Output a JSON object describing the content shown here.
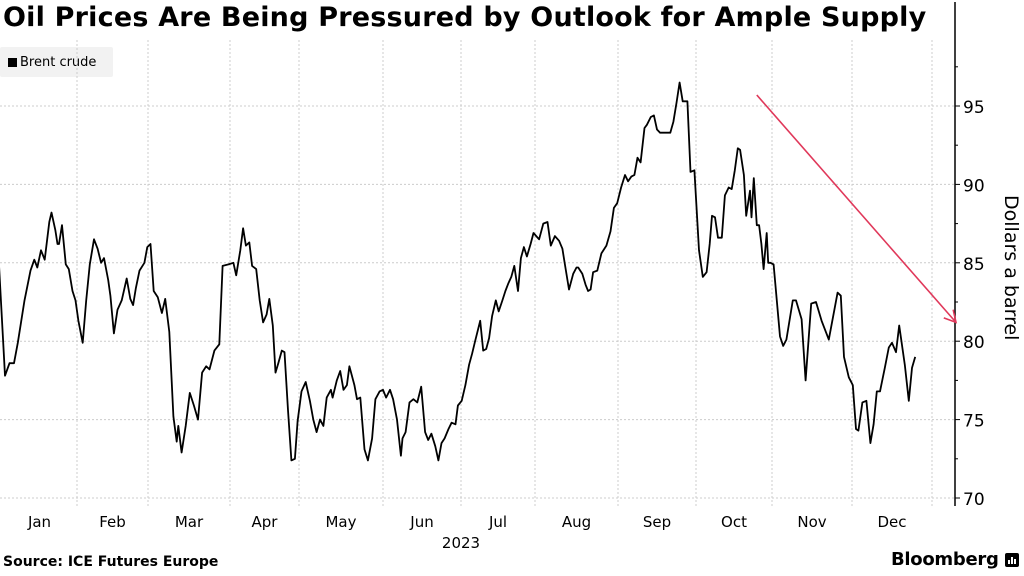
{
  "header": {
    "title": "Oil Prices Are Being Pressured by Outlook for Ample Supply"
  },
  "footer": {
    "source": "Source: ICE Futures Europe",
    "brand": "Bloomberg",
    "brand_icon": "bloomberg-chart-icon"
  },
  "colors": {
    "line": "#000000",
    "arrow": "#e0385a",
    "grid": "#cccccc",
    "legend_bg": "#f2f2f2"
  },
  "chart_data": {
    "type": "line",
    "title": "Oil Prices Are Being Pressured by Outlook for Ample Supply",
    "xlabel": "2023",
    "ylabel": "Dollars a barrel",
    "ylim": [
      69.5,
      98
    ],
    "yticks": [
      70,
      75,
      80,
      85,
      90,
      95
    ],
    "xticks": [
      "Jan",
      "Feb",
      "Mar",
      "Apr",
      "May",
      "Jun",
      "Jul",
      "Aug",
      "Sep",
      "Oct",
      "Nov",
      "Dec"
    ],
    "x_year_label": "2023",
    "grid": true,
    "legend": {
      "position": "top-left",
      "entries": [
        "Brent crude"
      ]
    },
    "annotation": {
      "type": "arrow",
      "description": "downward trend arrow",
      "from": {
        "month": 9.8,
        "value": 95.7
      },
      "to": {
        "month": 12.3,
        "value": 81.2
      }
    },
    "x_domain": [
      0.0,
      12.0
    ],
    "series": [
      {
        "name": "Brent crude",
        "points": [
          [
            -0.05,
            85.8
          ],
          [
            0.04,
            77.8
          ],
          [
            0.1,
            78.6
          ],
          [
            0.16,
            78.6
          ],
          [
            0.21,
            79.9
          ],
          [
            0.3,
            82.6
          ],
          [
            0.38,
            84.5
          ],
          [
            0.43,
            85.2
          ],
          [
            0.47,
            84.7
          ],
          [
            0.52,
            85.8
          ],
          [
            0.57,
            85.2
          ],
          [
            0.63,
            87.6
          ],
          [
            0.66,
            88.2
          ],
          [
            0.71,
            87.1
          ],
          [
            0.74,
            86.2
          ],
          [
            0.76,
            86.2
          ],
          [
            0.8,
            87.4
          ],
          [
            0.85,
            84.9
          ],
          [
            0.89,
            84.6
          ],
          [
            0.94,
            83.2
          ],
          [
            0.98,
            82.6
          ],
          [
            1.02,
            81.3
          ],
          [
            1.08,
            79.9
          ],
          [
            1.13,
            82.6
          ],
          [
            1.18,
            84.9
          ],
          [
            1.24,
            86.5
          ],
          [
            1.29,
            85.9
          ],
          [
            1.34,
            85.0
          ],
          [
            1.38,
            85.3
          ],
          [
            1.44,
            83.9
          ],
          [
            1.47,
            82.9
          ],
          [
            1.52,
            80.5
          ],
          [
            1.57,
            82.0
          ],
          [
            1.63,
            82.6
          ],
          [
            1.7,
            84.0
          ],
          [
            1.75,
            82.7
          ],
          [
            1.79,
            82.3
          ],
          [
            1.83,
            83.4
          ],
          [
            1.88,
            84.5
          ],
          [
            1.95,
            85.0
          ],
          [
            1.99,
            86.0
          ],
          [
            2.03,
            86.2
          ],
          [
            2.07,
            83.2
          ],
          [
            2.12,
            82.8
          ],
          [
            2.17,
            81.8
          ],
          [
            2.21,
            82.7
          ],
          [
            2.26,
            80.6
          ],
          [
            2.31,
            75.2
          ],
          [
            2.35,
            73.6
          ],
          [
            2.37,
            74.6
          ],
          [
            2.41,
            72.9
          ],
          [
            2.46,
            74.6
          ],
          [
            2.51,
            76.7
          ],
          [
            2.56,
            75.9
          ],
          [
            2.61,
            75.0
          ],
          [
            2.66,
            78.0
          ],
          [
            2.71,
            78.4
          ],
          [
            2.75,
            78.2
          ],
          [
            2.81,
            79.4
          ],
          [
            2.87,
            79.8
          ],
          [
            2.91,
            84.8
          ],
          [
            2.98,
            84.9
          ],
          [
            3.05,
            85.0
          ],
          [
            3.09,
            84.2
          ],
          [
            3.15,
            85.8
          ],
          [
            3.19,
            87.2
          ],
          [
            3.23,
            86.1
          ],
          [
            3.28,
            86.3
          ],
          [
            3.32,
            84.8
          ],
          [
            3.38,
            84.6
          ],
          [
            3.43,
            82.6
          ],
          [
            3.48,
            81.2
          ],
          [
            3.53,
            81.7
          ],
          [
            3.57,
            82.7
          ],
          [
            3.62,
            81.0
          ],
          [
            3.66,
            78.0
          ],
          [
            3.7,
            78.6
          ],
          [
            3.75,
            79.4
          ],
          [
            3.79,
            79.3
          ],
          [
            3.84,
            75.6
          ],
          [
            3.89,
            72.4
          ],
          [
            3.94,
            72.5
          ],
          [
            3.98,
            74.9
          ],
          [
            4.03,
            76.8
          ],
          [
            4.08,
            77.4
          ],
          [
            4.13,
            76.2
          ],
          [
            4.17,
            75.0
          ],
          [
            4.21,
            74.2
          ],
          [
            4.25,
            75.0
          ],
          [
            4.29,
            74.6
          ],
          [
            4.33,
            76.4
          ],
          [
            4.38,
            76.9
          ],
          [
            4.4,
            76.4
          ],
          [
            4.45,
            77.5
          ],
          [
            4.49,
            78.1
          ],
          [
            4.53,
            76.9
          ],
          [
            4.57,
            77.2
          ],
          [
            4.6,
            78.4
          ],
          [
            4.66,
            77.2
          ],
          [
            4.69,
            76.3
          ],
          [
            4.73,
            76.4
          ],
          [
            4.78,
            73.1
          ],
          [
            4.82,
            72.4
          ],
          [
            4.87,
            73.8
          ],
          [
            4.91,
            76.3
          ],
          [
            4.96,
            76.8
          ],
          [
            5.0,
            76.9
          ],
          [
            5.04,
            76.4
          ],
          [
            5.09,
            76.9
          ],
          [
            5.13,
            76.3
          ],
          [
            5.18,
            75.0
          ],
          [
            5.23,
            72.7
          ],
          [
            5.25,
            73.8
          ],
          [
            5.29,
            74.2
          ],
          [
            5.34,
            76.1
          ],
          [
            5.39,
            76.3
          ],
          [
            5.44,
            76.1
          ],
          [
            5.49,
            77.1
          ],
          [
            5.54,
            74.2
          ],
          [
            5.58,
            73.7
          ],
          [
            5.62,
            74.1
          ],
          [
            5.67,
            73.3
          ],
          [
            5.71,
            72.4
          ],
          [
            5.75,
            73.5
          ],
          [
            5.79,
            73.8
          ],
          [
            5.84,
            74.4
          ],
          [
            5.88,
            74.8
          ],
          [
            5.93,
            74.7
          ],
          [
            5.96,
            75.9
          ],
          [
            6.01,
            76.2
          ],
          [
            6.06,
            77.2
          ],
          [
            6.11,
            78.5
          ],
          [
            6.15,
            79.2
          ],
          [
            6.19,
            80.0
          ],
          [
            6.26,
            81.3
          ],
          [
            6.3,
            79.4
          ],
          [
            6.34,
            79.5
          ],
          [
            6.38,
            80.2
          ],
          [
            6.42,
            81.6
          ],
          [
            6.47,
            82.6
          ],
          [
            6.51,
            81.9
          ],
          [
            6.56,
            82.6
          ],
          [
            6.6,
            83.2
          ],
          [
            6.64,
            83.7
          ],
          [
            6.68,
            84.1
          ],
          [
            6.72,
            84.8
          ],
          [
            6.77,
            83.2
          ],
          [
            6.81,
            85.3
          ],
          [
            6.85,
            86.0
          ],
          [
            6.89,
            85.4
          ],
          [
            6.94,
            86.2
          ],
          [
            6.98,
            86.9
          ],
          [
            7.05,
            86.5
          ],
          [
            7.1,
            87.5
          ],
          [
            7.15,
            87.6
          ],
          [
            7.19,
            86.1
          ],
          [
            7.24,
            86.7
          ],
          [
            7.29,
            86.4
          ],
          [
            7.33,
            85.9
          ],
          [
            7.36,
            84.9
          ],
          [
            7.41,
            83.3
          ],
          [
            7.46,
            84.3
          ],
          [
            7.5,
            84.7
          ],
          [
            7.52,
            84.7
          ],
          [
            7.57,
            84.3
          ],
          [
            7.61,
            83.6
          ],
          [
            7.64,
            83.2
          ],
          [
            7.67,
            83.3
          ],
          [
            7.7,
            84.4
          ],
          [
            7.75,
            84.5
          ],
          [
            7.8,
            85.6
          ],
          [
            7.86,
            86.1
          ],
          [
            7.91,
            87.0
          ],
          [
            7.95,
            88.5
          ],
          [
            7.99,
            88.8
          ],
          [
            8.04,
            89.8
          ],
          [
            8.09,
            90.6
          ],
          [
            8.13,
            90.2
          ],
          [
            8.17,
            90.5
          ],
          [
            8.21,
            90.6
          ],
          [
            8.25,
            91.7
          ],
          [
            8.29,
            91.4
          ],
          [
            8.34,
            93.6
          ],
          [
            8.37,
            93.8
          ],
          [
            8.42,
            94.3
          ],
          [
            8.46,
            94.4
          ],
          [
            8.5,
            93.5
          ],
          [
            8.54,
            93.3
          ],
          [
            8.59,
            93.3
          ],
          [
            8.67,
            93.3
          ],
          [
            8.71,
            94.0
          ],
          [
            8.75,
            95.2
          ],
          [
            8.79,
            96.5
          ],
          [
            8.83,
            95.3
          ],
          [
            8.89,
            95.3
          ],
          [
            8.93,
            90.8
          ],
          [
            8.98,
            90.9
          ],
          [
            9.04,
            85.8
          ],
          [
            9.09,
            84.1
          ],
          [
            9.14,
            84.4
          ],
          [
            9.18,
            86.2
          ],
          [
            9.21,
            88.0
          ],
          [
            9.25,
            87.9
          ],
          [
            9.29,
            86.6
          ],
          [
            9.34,
            86.6
          ],
          [
            9.38,
            89.3
          ],
          [
            9.43,
            89.8
          ],
          [
            9.47,
            89.7
          ],
          [
            9.51,
            90.9
          ],
          [
            9.55,
            92.3
          ],
          [
            9.58,
            92.2
          ],
          [
            9.63,
            90.6
          ],
          [
            9.66,
            88.0
          ],
          [
            9.71,
            89.6
          ],
          [
            9.73,
            87.9
          ],
          [
            9.76,
            90.4
          ],
          [
            9.8,
            87.4
          ],
          [
            9.83,
            87.4
          ],
          [
            9.86,
            86.2
          ],
          [
            9.89,
            84.6
          ],
          [
            9.93,
            86.9
          ],
          [
            9.95,
            85.0
          ],
          [
            9.98,
            85.0
          ],
          [
            10.02,
            84.9
          ],
          [
            10.1,
            80.3
          ],
          [
            10.14,
            79.7
          ],
          [
            10.18,
            80.1
          ],
          [
            10.26,
            82.6
          ],
          [
            10.3,
            82.6
          ],
          [
            10.37,
            81.4
          ],
          [
            10.42,
            77.5
          ],
          [
            10.49,
            82.4
          ],
          [
            10.55,
            82.5
          ],
          [
            10.62,
            81.3
          ],
          [
            10.71,
            80.1
          ],
          [
            10.82,
            83.1
          ],
          [
            10.86,
            82.9
          ],
          [
            10.9,
            79.0
          ],
          [
            10.96,
            77.7
          ],
          [
            11.01,
            77.2
          ],
          [
            11.05,
            74.4
          ],
          [
            11.08,
            74.3
          ],
          [
            11.13,
            76.1
          ],
          [
            11.18,
            76.2
          ],
          [
            11.23,
            73.5
          ],
          [
            11.27,
            74.7
          ],
          [
            11.31,
            76.8
          ],
          [
            11.35,
            76.8
          ],
          [
            11.41,
            78.3
          ],
          [
            11.46,
            79.6
          ],
          [
            11.5,
            79.9
          ],
          [
            11.55,
            79.3
          ],
          [
            11.59,
            81.0
          ],
          [
            11.66,
            78.5
          ],
          [
            11.71,
            76.2
          ],
          [
            11.75,
            78.3
          ],
          [
            11.79,
            79.0
          ]
        ]
      }
    ]
  }
}
